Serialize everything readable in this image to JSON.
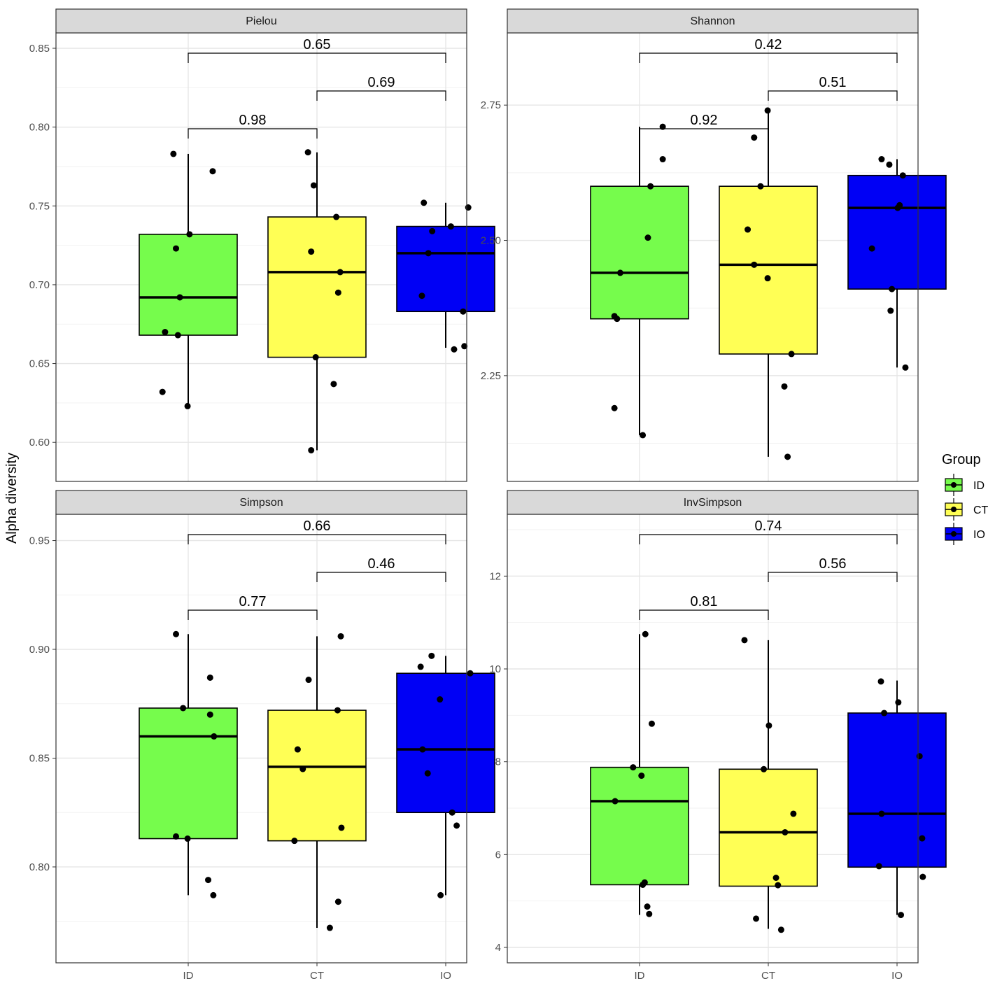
{
  "chart_data": {
    "type": "box",
    "ylabel": "Alpha diversity",
    "legend": {
      "title": "Group",
      "position": "right",
      "items": [
        {
          "label": "ID",
          "color": "#76fc4c"
        },
        {
          "label": "CT",
          "color": "#ffff55"
        },
        {
          "label": "IO",
          "color": "#0000f5"
        }
      ]
    },
    "categories": [
      "ID",
      "CT",
      "IO"
    ],
    "grid": true,
    "panels": [
      {
        "title": "Pielou",
        "ylim": [
          0.585,
          0.85
        ],
        "yticks": [
          0.6,
          0.65,
          0.7,
          0.75,
          0.8,
          0.85
        ],
        "ytick_labels": [
          "0.60",
          "0.65",
          "0.70",
          "0.75",
          "0.80",
          "0.85"
        ],
        "boxes": [
          {
            "group": "ID",
            "whisker_low": 0.623,
            "q1": 0.668,
            "median": 0.692,
            "q3": 0.732,
            "whisker_high": 0.783
          },
          {
            "group": "CT",
            "whisker_low": 0.595,
            "q1": 0.654,
            "median": 0.708,
            "q3": 0.743,
            "whisker_high": 0.784
          },
          {
            "group": "IO",
            "whisker_low": 0.66,
            "q1": 0.683,
            "median": 0.72,
            "q3": 0.737,
            "whisker_high": 0.752
          }
        ],
        "points": [
          {
            "group": "ID",
            "jitter": -0.4,
            "y": 0.632
          },
          {
            "group": "ID",
            "jitter": -0.36,
            "y": 0.67
          },
          {
            "group": "ID",
            "jitter": -0.23,
            "y": 0.783
          },
          {
            "group": "ID",
            "jitter": -0.19,
            "y": 0.723
          },
          {
            "group": "ID",
            "jitter": -0.16,
            "y": 0.668
          },
          {
            "group": "ID",
            "jitter": -0.13,
            "y": 0.692
          },
          {
            "group": "ID",
            "jitter": -0.01,
            "y": 0.623
          },
          {
            "group": "ID",
            "jitter": 0.02,
            "y": 0.732
          },
          {
            "group": "ID",
            "jitter": 0.38,
            "y": 0.772
          },
          {
            "group": "CT",
            "jitter": -0.14,
            "y": 0.784
          },
          {
            "group": "CT",
            "jitter": -0.09,
            "y": 0.721
          },
          {
            "group": "CT",
            "jitter": -0.09,
            "y": 0.595
          },
          {
            "group": "CT",
            "jitter": -0.05,
            "y": 0.763
          },
          {
            "group": "CT",
            "jitter": -0.02,
            "y": 0.654
          },
          {
            "group": "CT",
            "jitter": 0.26,
            "y": 0.637
          },
          {
            "group": "CT",
            "jitter": 0.3,
            "y": 0.743
          },
          {
            "group": "CT",
            "jitter": 0.33,
            "y": 0.695
          },
          {
            "group": "CT",
            "jitter": 0.36,
            "y": 0.708
          },
          {
            "group": "IO",
            "jitter": -0.37,
            "y": 0.693
          },
          {
            "group": "IO",
            "jitter": -0.34,
            "y": 0.752
          },
          {
            "group": "IO",
            "jitter": -0.27,
            "y": 0.72
          },
          {
            "group": "IO",
            "jitter": -0.21,
            "y": 0.734
          },
          {
            "group": "IO",
            "jitter": 0.08,
            "y": 0.737
          },
          {
            "group": "IO",
            "jitter": 0.13,
            "y": 0.659
          },
          {
            "group": "IO",
            "jitter": 0.27,
            "y": 0.683
          },
          {
            "group": "IO",
            "jitter": 0.29,
            "y": 0.661
          },
          {
            "group": "IO",
            "jitter": 0.35,
            "y": 0.749
          }
        ],
        "comparisons": [
          {
            "from": "ID",
            "to": "CT",
            "label": "0.98",
            "level": 0
          },
          {
            "from": "CT",
            "to": "IO",
            "label": "0.69",
            "level": 1
          },
          {
            "from": "ID",
            "to": "IO",
            "label": "0.65",
            "level": 2
          }
        ]
      },
      {
        "title": "Shannon",
        "ylim": [
          2.083,
          2.855
        ],
        "yticks": [
          2.25,
          2.5,
          2.75
        ],
        "ytick_labels": [
          "2.25",
          "2.50",
          "2.75"
        ],
        "boxes": [
          {
            "group": "ID",
            "whisker_low": 2.14,
            "q1": 2.355,
            "median": 2.44,
            "q3": 2.6,
            "whisker_high": 2.71
          },
          {
            "group": "CT",
            "whisker_low": 2.1,
            "q1": 2.29,
            "median": 2.455,
            "q3": 2.6,
            "whisker_high": 2.74
          },
          {
            "group": "IO",
            "whisker_low": 2.265,
            "q1": 2.41,
            "median": 2.56,
            "q3": 2.62,
            "whisker_high": 2.65
          }
        ],
        "points": [
          {
            "group": "ID",
            "jitter": -0.39,
            "y": 2.19
          },
          {
            "group": "ID",
            "jitter": -0.39,
            "y": 2.36
          },
          {
            "group": "ID",
            "jitter": -0.35,
            "y": 2.355
          },
          {
            "group": "ID",
            "jitter": -0.3,
            "y": 2.44
          },
          {
            "group": "ID",
            "jitter": 0.05,
            "y": 2.14
          },
          {
            "group": "ID",
            "jitter": 0.13,
            "y": 2.505
          },
          {
            "group": "ID",
            "jitter": 0.17,
            "y": 2.6
          },
          {
            "group": "ID",
            "jitter": 0.36,
            "y": 2.71
          },
          {
            "group": "ID",
            "jitter": 0.36,
            "y": 2.65
          },
          {
            "group": "CT",
            "jitter": -0.32,
            "y": 2.52
          },
          {
            "group": "CT",
            "jitter": -0.22,
            "y": 2.69
          },
          {
            "group": "CT",
            "jitter": -0.22,
            "y": 2.455
          },
          {
            "group": "CT",
            "jitter": -0.12,
            "y": 2.6
          },
          {
            "group": "CT",
            "jitter": -0.01,
            "y": 2.74
          },
          {
            "group": "CT",
            "jitter": -0.01,
            "y": 2.43
          },
          {
            "group": "CT",
            "jitter": 0.25,
            "y": 2.23
          },
          {
            "group": "CT",
            "jitter": 0.3,
            "y": 2.1
          },
          {
            "group": "CT",
            "jitter": 0.36,
            "y": 2.29
          },
          {
            "group": "IO",
            "jitter": -0.39,
            "y": 2.485
          },
          {
            "group": "IO",
            "jitter": -0.24,
            "y": 2.65
          },
          {
            "group": "IO",
            "jitter": -0.1,
            "y": 2.37
          },
          {
            "group": "IO",
            "jitter": -0.08,
            "y": 2.41
          },
          {
            "group": "IO",
            "jitter": -0.12,
            "y": 2.64
          },
          {
            "group": "IO",
            "jitter": 0.01,
            "y": 2.56
          },
          {
            "group": "IO",
            "jitter": 0.04,
            "y": 2.565
          },
          {
            "group": "IO",
            "jitter": 0.09,
            "y": 2.62
          },
          {
            "group": "IO",
            "jitter": 0.13,
            "y": 2.265
          }
        ],
        "comparisons": [
          {
            "from": "ID",
            "to": "CT",
            "label": "0.92",
            "level": 0
          },
          {
            "from": "CT",
            "to": "IO",
            "label": "0.51",
            "level": 1
          },
          {
            "from": "ID",
            "to": "IO",
            "label": "0.42",
            "level": 2
          }
        ]
      },
      {
        "title": "Simpson",
        "ylim": [
          0.763,
          0.955
        ],
        "yticks": [
          0.8,
          0.85,
          0.9,
          0.95
        ],
        "ytick_labels": [
          "0.80",
          "0.85",
          "0.90",
          "0.95"
        ],
        "boxes": [
          {
            "group": "ID",
            "whisker_low": 0.787,
            "q1": 0.813,
            "median": 0.86,
            "q3": 0.873,
            "whisker_high": 0.907
          },
          {
            "group": "CT",
            "whisker_low": 0.772,
            "q1": 0.812,
            "median": 0.846,
            "q3": 0.872,
            "whisker_high": 0.906
          },
          {
            "group": "IO",
            "whisker_low": 0.787,
            "q1": 0.825,
            "median": 0.854,
            "q3": 0.889,
            "whisker_high": 0.897
          }
        ],
        "points": [
          {
            "group": "ID",
            "jitter": -0.19,
            "y": 0.907
          },
          {
            "group": "ID",
            "jitter": -0.08,
            "y": 0.873
          },
          {
            "group": "ID",
            "jitter": -0.19,
            "y": 0.814
          },
          {
            "group": "ID",
            "jitter": -0.01,
            "y": 0.813
          },
          {
            "group": "ID",
            "jitter": 0.31,
            "y": 0.794
          },
          {
            "group": "ID",
            "jitter": 0.34,
            "y": 0.887
          },
          {
            "group": "ID",
            "jitter": 0.34,
            "y": 0.87
          },
          {
            "group": "ID",
            "jitter": 0.4,
            "y": 0.86
          },
          {
            "group": "ID",
            "jitter": 0.39,
            "y": 0.787
          },
          {
            "group": "CT",
            "jitter": -0.35,
            "y": 0.812
          },
          {
            "group": "CT",
            "jitter": -0.3,
            "y": 0.854
          },
          {
            "group": "CT",
            "jitter": -0.22,
            "y": 0.845
          },
          {
            "group": "CT",
            "jitter": -0.13,
            "y": 0.886
          },
          {
            "group": "CT",
            "jitter": 0.2,
            "y": 0.772
          },
          {
            "group": "CT",
            "jitter": 0.32,
            "y": 0.872
          },
          {
            "group": "CT",
            "jitter": 0.33,
            "y": 0.784
          },
          {
            "group": "CT",
            "jitter": 0.38,
            "y": 0.818
          },
          {
            "group": "CT",
            "jitter": 0.37,
            "y": 0.906
          },
          {
            "group": "IO",
            "jitter": -0.39,
            "y": 0.892
          },
          {
            "group": "IO",
            "jitter": -0.36,
            "y": 0.854
          },
          {
            "group": "IO",
            "jitter": -0.28,
            "y": 0.843
          },
          {
            "group": "IO",
            "jitter": -0.22,
            "y": 0.897
          },
          {
            "group": "IO",
            "jitter": -0.09,
            "y": 0.877
          },
          {
            "group": "IO",
            "jitter": -0.08,
            "y": 0.787
          },
          {
            "group": "IO",
            "jitter": 0.1,
            "y": 0.825
          },
          {
            "group": "IO",
            "jitter": 0.17,
            "y": 0.819
          },
          {
            "group": "IO",
            "jitter": 0.38,
            "y": 0.889
          }
        ],
        "comparisons": [
          {
            "from": "ID",
            "to": "CT",
            "label": "0.77",
            "level": 0
          },
          {
            "from": "CT",
            "to": "IO",
            "label": "0.46",
            "level": 1
          },
          {
            "from": "ID",
            "to": "IO",
            "label": "0.66",
            "level": 2
          }
        ]
      },
      {
        "title": "InvSimpson",
        "ylim": [
          4.0,
          13.0
        ],
        "yticks": [
          4,
          6,
          8,
          10,
          12
        ],
        "ytick_labels": [
          "4",
          "6",
          "8",
          "10",
          "12"
        ],
        "boxes": [
          {
            "group": "ID",
            "whisker_low": 4.7,
            "q1": 5.35,
            "median": 7.15,
            "q3": 7.88,
            "whisker_high": 10.75
          },
          {
            "group": "CT",
            "whisker_low": 4.4,
            "q1": 5.32,
            "median": 6.48,
            "q3": 7.84,
            "whisker_high": 10.62
          },
          {
            "group": "IO",
            "whisker_low": 4.7,
            "q1": 5.73,
            "median": 6.88,
            "q3": 9.05,
            "whisker_high": 9.75
          }
        ],
        "points": [
          {
            "group": "ID",
            "jitter": -0.38,
            "y": 7.15
          },
          {
            "group": "ID",
            "jitter": -0.1,
            "y": 7.88
          },
          {
            "group": "ID",
            "jitter": 0.03,
            "y": 7.7
          },
          {
            "group": "ID",
            "jitter": 0.05,
            "y": 5.35
          },
          {
            "group": "ID",
            "jitter": 0.08,
            "y": 5.4
          },
          {
            "group": "ID",
            "jitter": 0.09,
            "y": 10.75
          },
          {
            "group": "ID",
            "jitter": 0.12,
            "y": 4.88
          },
          {
            "group": "ID",
            "jitter": 0.15,
            "y": 4.72
          },
          {
            "group": "ID",
            "jitter": 0.19,
            "y": 8.82
          },
          {
            "group": "CT",
            "jitter": -0.37,
            "y": 10.62
          },
          {
            "group": "CT",
            "jitter": -0.19,
            "y": 4.62
          },
          {
            "group": "CT",
            "jitter": -0.07,
            "y": 7.84
          },
          {
            "group": "CT",
            "jitter": 0.01,
            "y": 8.78
          },
          {
            "group": "CT",
            "jitter": 0.12,
            "y": 5.5
          },
          {
            "group": "CT",
            "jitter": 0.15,
            "y": 5.34
          },
          {
            "group": "CT",
            "jitter": 0.26,
            "y": 6.48
          },
          {
            "group": "CT",
            "jitter": 0.2,
            "y": 4.38
          },
          {
            "group": "CT",
            "jitter": 0.39,
            "y": 6.88
          },
          {
            "group": "IO",
            "jitter": -0.28,
            "y": 5.75
          },
          {
            "group": "IO",
            "jitter": -0.25,
            "y": 9.73
          },
          {
            "group": "IO",
            "jitter": -0.24,
            "y": 6.88
          },
          {
            "group": "IO",
            "jitter": -0.2,
            "y": 9.05
          },
          {
            "group": "IO",
            "jitter": 0.02,
            "y": 9.28
          },
          {
            "group": "IO",
            "jitter": 0.06,
            "y": 4.7
          },
          {
            "group": "IO",
            "jitter": 0.35,
            "y": 8.12
          },
          {
            "group": "IO",
            "jitter": 0.39,
            "y": 6.35
          },
          {
            "group": "IO",
            "jitter": 0.4,
            "y": 5.52
          }
        ],
        "comparisons": [
          {
            "from": "ID",
            "to": "CT",
            "label": "0.81",
            "level": 0
          },
          {
            "from": "CT",
            "to": "IO",
            "label": "0.56",
            "level": 1
          },
          {
            "from": "ID",
            "to": "IO",
            "label": "0.74",
            "level": 2
          }
        ]
      }
    ]
  }
}
